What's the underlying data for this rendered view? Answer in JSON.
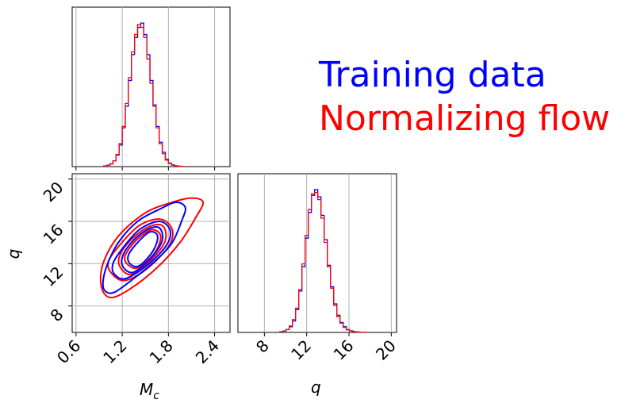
{
  "chart_data": {
    "type": "corner",
    "grid": true,
    "legend": {
      "placement": "top-right",
      "entries": [
        {
          "label": "Training data",
          "color": "#0000ff"
        },
        {
          "label": "Normalizing flow",
          "color": "#ff0000"
        }
      ]
    },
    "axes_labels": {
      "x_bottom_left": "Mc",
      "x_bottom_left_sub": "c",
      "x_bottom_left_main": "M",
      "x_bottom_right": "q",
      "y_left": "q"
    },
    "mc_ticks": [
      "0.6",
      "1.2",
      "1.8",
      "2.4"
    ],
    "q_ticks_x": [
      "8",
      "12",
      "16",
      "20"
    ],
    "q_ticks_y": [
      "8",
      "12",
      "16",
      "20"
    ],
    "mc_range": [
      0.55,
      2.6
    ],
    "q_range": [
      5.5,
      20.5
    ],
    "marginal_mc": {
      "bins": [
        0.98,
        1.02,
        1.06,
        1.1,
        1.14,
        1.18,
        1.22,
        1.26,
        1.3,
        1.34,
        1.38,
        1.42,
        1.46,
        1.5,
        1.54,
        1.58,
        1.62,
        1.66,
        1.7,
        1.74,
        1.78,
        1.82,
        1.86,
        1.9,
        1.94,
        1.98
      ],
      "training": [
        0.005,
        0.01,
        0.02,
        0.04,
        0.08,
        0.15,
        0.27,
        0.42,
        0.6,
        0.78,
        0.9,
        0.97,
        1.0,
        0.92,
        0.78,
        0.6,
        0.43,
        0.28,
        0.17,
        0.1,
        0.05,
        0.025,
        0.012,
        0.006,
        0.003,
        0.001
      ],
      "flow": [
        0.004,
        0.009,
        0.018,
        0.04,
        0.085,
        0.16,
        0.28,
        0.44,
        0.62,
        0.8,
        0.92,
        0.99,
        0.97,
        0.9,
        0.75,
        0.58,
        0.42,
        0.27,
        0.16,
        0.09,
        0.045,
        0.022,
        0.01,
        0.005,
        0.002,
        0.001
      ]
    },
    "marginal_q": {
      "bins": [
        9.6,
        9.9,
        10.2,
        10.5,
        10.8,
        11.1,
        11.4,
        11.7,
        12.0,
        12.3,
        12.6,
        12.9,
        13.2,
        13.5,
        13.8,
        14.1,
        14.4,
        14.7,
        15.0,
        15.3,
        15.6,
        15.9,
        16.2,
        16.5,
        16.8,
        17.1,
        17.4
      ],
      "training": [
        0.005,
        0.01,
        0.02,
        0.04,
        0.08,
        0.16,
        0.29,
        0.46,
        0.66,
        0.84,
        0.96,
        1.0,
        0.95,
        0.82,
        0.65,
        0.47,
        0.32,
        0.2,
        0.12,
        0.07,
        0.04,
        0.02,
        0.012,
        0.006,
        0.003,
        0.002,
        0.001
      ],
      "flow": [
        0.004,
        0.009,
        0.02,
        0.045,
        0.09,
        0.17,
        0.3,
        0.48,
        0.68,
        0.86,
        0.97,
        0.98,
        0.93,
        0.8,
        0.63,
        0.46,
        0.31,
        0.19,
        0.11,
        0.065,
        0.035,
        0.018,
        0.01,
        0.005,
        0.003,
        0.002,
        0.001
      ]
    },
    "contours_2d": {
      "training": [
        {
          "level": "outer",
          "points": [
            [
              0.98,
              9.4
            ],
            [
              1.1,
              9.3
            ],
            [
              1.35,
              10.6
            ],
            [
              1.65,
              12.4
            ],
            [
              1.85,
              14.0
            ],
            [
              1.97,
              16.0
            ],
            [
              2.02,
              17.3
            ],
            [
              1.9,
              17.8
            ],
            [
              1.7,
              17.2
            ],
            [
              1.4,
              16.0
            ],
            [
              1.15,
              14.0
            ],
            [
              1.0,
              11.8
            ],
            [
              0.95,
              10.2
            ]
          ]
        },
        {
          "level": "mid",
          "points": [
            [
              1.1,
              11.0
            ],
            [
              1.25,
              10.6
            ],
            [
              1.55,
              12.0
            ],
            [
              1.78,
              13.8
            ],
            [
              1.82,
              15.2
            ],
            [
              1.68,
              16.0
            ],
            [
              1.42,
              15.2
            ],
            [
              1.2,
              13.4
            ],
            [
              1.08,
              12.0
            ]
          ]
        },
        {
          "level": "inner1",
          "points": [
            [
              1.22,
              11.6
            ],
            [
              1.35,
              11.2
            ],
            [
              1.58,
              12.6
            ],
            [
              1.72,
              14.2
            ],
            [
              1.68,
              15.4
            ],
            [
              1.52,
              15.2
            ],
            [
              1.32,
              14.0
            ],
            [
              1.2,
              12.6
            ]
          ]
        },
        {
          "level": "inner2",
          "points": [
            [
              1.3,
              12.0
            ],
            [
              1.42,
              11.8
            ],
            [
              1.6,
              13.2
            ],
            [
              1.66,
              14.6
            ],
            [
              1.56,
              15.0
            ],
            [
              1.4,
              14.0
            ],
            [
              1.28,
              12.8
            ]
          ]
        }
      ],
      "flow": [
        {
          "level": "outer",
          "points": [
            [
              0.93,
              9.8
            ],
            [
              1.05,
              8.8
            ],
            [
              1.3,
              9.6
            ],
            [
              1.65,
              11.6
            ],
            [
              1.95,
              14.0
            ],
            [
              2.15,
              16.3
            ],
            [
              2.25,
              17.8
            ],
            [
              2.1,
              18.2
            ],
            [
              1.85,
              17.8
            ],
            [
              1.5,
              16.8
            ],
            [
              1.15,
              14.6
            ],
            [
              0.95,
              12.0
            ]
          ]
        },
        {
          "level": "mid",
          "points": [
            [
              1.05,
              11.2
            ],
            [
              1.22,
              10.4
            ],
            [
              1.5,
              11.4
            ],
            [
              1.8,
              13.6
            ],
            [
              1.85,
              15.2
            ],
            [
              1.7,
              16.2
            ],
            [
              1.42,
              15.6
            ],
            [
              1.15,
              13.6
            ],
            [
              1.02,
              12.2
            ]
          ]
        },
        {
          "level": "inner1",
          "points": [
            [
              1.18,
              11.6
            ],
            [
              1.32,
              11.0
            ],
            [
              1.58,
              12.4
            ],
            [
              1.76,
              14.2
            ],
            [
              1.72,
              15.6
            ],
            [
              1.52,
              15.4
            ],
            [
              1.28,
              14.0
            ],
            [
              1.16,
              12.6
            ]
          ]
        },
        {
          "level": "inner2",
          "points": [
            [
              1.26,
              12.0
            ],
            [
              1.4,
              11.6
            ],
            [
              1.62,
              13.0
            ],
            [
              1.7,
              14.6
            ],
            [
              1.58,
              15.2
            ],
            [
              1.38,
              14.2
            ],
            [
              1.24,
              12.8
            ]
          ]
        }
      ]
    }
  }
}
